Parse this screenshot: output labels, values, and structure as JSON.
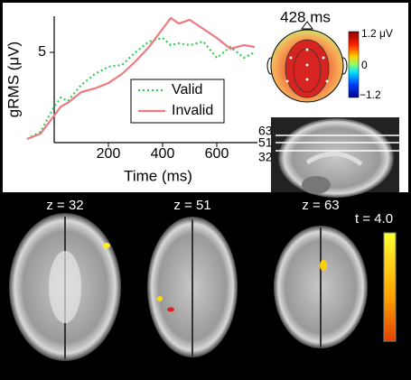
{
  "chart_data": {
    "type": "line",
    "x_label": "Time (ms)",
    "y_label": "gRMS (μV)",
    "x": [
      -100,
      -50,
      0,
      25,
      50,
      100,
      150,
      200,
      250,
      300,
      350,
      400,
      430,
      460,
      500,
      550,
      600,
      650,
      700,
      740
    ],
    "series": [
      {
        "name": "Valid",
        "color": "#33cc55",
        "dash": true,
        "values": [
          0.2,
          0.6,
          2.0,
          2.5,
          2.3,
          3.2,
          3.8,
          4.2,
          4.3,
          5.0,
          5.6,
          5.8,
          5.4,
          5.5,
          5.4,
          5.6,
          4.7,
          5.3,
          4.7,
          5.0
        ]
      },
      {
        "name": "Invalid",
        "color": "#ec7a80",
        "dash": false,
        "values": [
          0.2,
          0.5,
          1.5,
          2.0,
          2.2,
          2.8,
          3.0,
          3.3,
          3.8,
          4.5,
          5.3,
          6.3,
          6.9,
          6.6,
          6.8,
          6.3,
          5.8,
          5.2,
          5.4,
          5.3
        ]
      }
    ],
    "xlim": [
      -100,
      750
    ],
    "ylim": [
      0,
      7
    ],
    "xticks": [
      200,
      400,
      600
    ],
    "yticks": [
      5
    ],
    "grid": false
  },
  "topomap": {
    "time": "428 ms",
    "colorbar_labels": [
      "1.2 μV",
      "0",
      "−1.2"
    ]
  },
  "sagittal": {
    "slice_labels": [
      "63",
      "51",
      "32"
    ]
  },
  "slices": {
    "labels": [
      "z = 32",
      "z = 51",
      "z = 63"
    ],
    "t_label": "t = 4.0"
  }
}
